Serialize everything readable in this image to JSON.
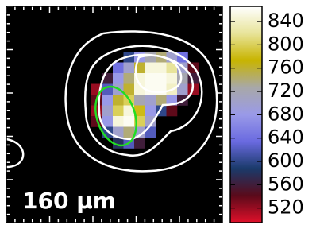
{
  "chart_data": {
    "type": "heatmap",
    "label": "160 μm",
    "values": [
      [
        null,
        null,
        null,
        600,
        680,
        720,
        740,
        700,
        640,
        null
      ],
      [
        null,
        null,
        640,
        700,
        760,
        850,
        850,
        820,
        700,
        540
      ],
      [
        null,
        560,
        680,
        740,
        850,
        860,
        860,
        850,
        720,
        560
      ],
      [
        520,
        620,
        700,
        760,
        850,
        860,
        860,
        840,
        700,
        520
      ],
      [
        540,
        680,
        760,
        800,
        720,
        700,
        740,
        680,
        560,
        null
      ],
      [
        520,
        700,
        800,
        850,
        780,
        680,
        600,
        540,
        null,
        null
      ],
      [
        540,
        680,
        850,
        860,
        800,
        700,
        null,
        null,
        null,
        null
      ],
      [
        null,
        600,
        700,
        740,
        700,
        620,
        null,
        null,
        null,
        null
      ],
      [
        null,
        null,
        580,
        620,
        560,
        null,
        null,
        null,
        null,
        null
      ]
    ],
    "colormap": [
      "#e0102a",
      "#5a0a1a",
      "#1a3a6a",
      "#6a6ae0",
      "#9a9ae8",
      "#a8a8a8",
      "#c8b400",
      "#e8e49a",
      "#ffffff"
    ],
    "clim": [
      495,
      866
    ],
    "cticks": [
      520,
      560,
      600,
      640,
      680,
      720,
      760,
      800,
      840
    ]
  }
}
